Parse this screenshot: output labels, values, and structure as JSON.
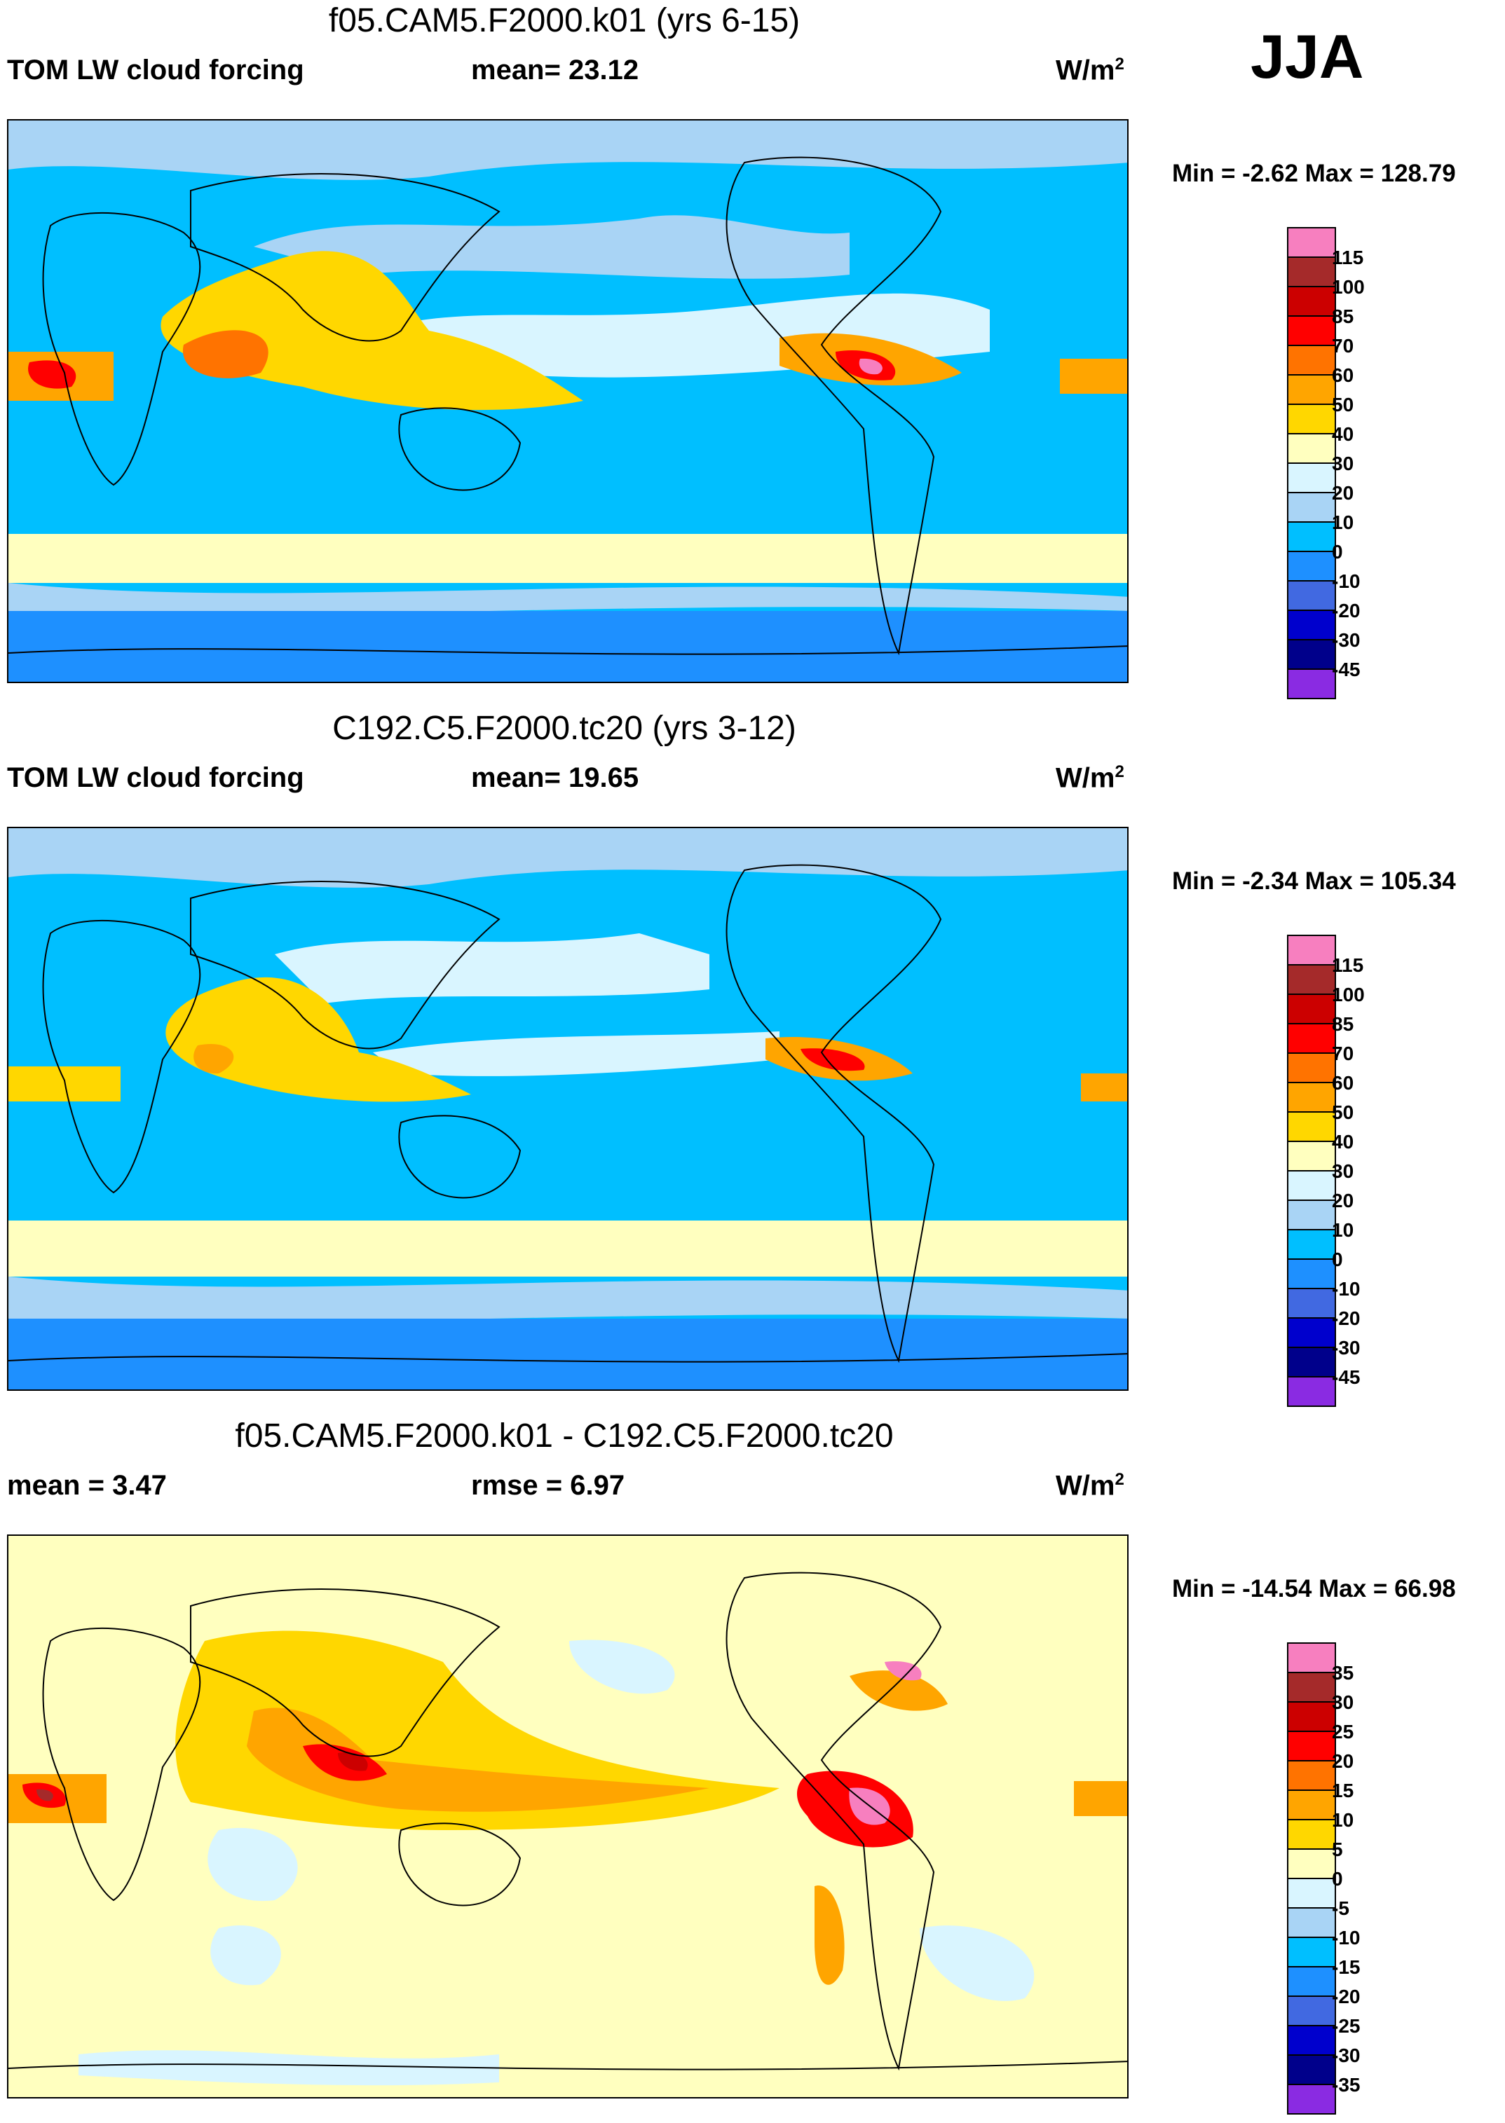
{
  "season": "JJA",
  "units_base": "W/m",
  "units_exp": "2",
  "panels": [
    {
      "title": "f05.CAM5.F2000.k01 (yrs 6-15)",
      "left_text": "TOM LW cloud forcing",
      "mid_text": "mean=  23.12",
      "minmax": "Min =  -2.62 Max = 128.79",
      "colorbar": {
        "labels": [
          "115",
          "100",
          "85",
          "70",
          "60",
          "50",
          "40",
          "30",
          "20",
          "10",
          "0",
          "-10",
          "-20",
          "-30",
          "-45"
        ],
        "colors": [
          "#f77fbf",
          "#a52a2a",
          "#cc0000",
          "#ff0000",
          "#ff7300",
          "#ffa500",
          "#ffd700",
          "#ffffbf",
          "#d9f5ff",
          "#a9d4f5",
          "#00bfff",
          "#1e90ff",
          "#4169e1",
          "#0000cd",
          "#00008b",
          "#8a2be2"
        ]
      }
    },
    {
      "title": "C192.C5.F2000.tc20 (yrs 3-12)",
      "left_text": "TOM LW cloud forcing",
      "mid_text": "mean=  19.65",
      "minmax": "Min =  -2.34 Max = 105.34",
      "colorbar": {
        "labels": [
          "115",
          "100",
          "85",
          "70",
          "60",
          "50",
          "40",
          "30",
          "20",
          "10",
          "0",
          "-10",
          "-20",
          "-30",
          "-45"
        ],
        "colors": [
          "#f77fbf",
          "#a52a2a",
          "#cc0000",
          "#ff0000",
          "#ff7300",
          "#ffa500",
          "#ffd700",
          "#ffffbf",
          "#d9f5ff",
          "#a9d4f5",
          "#00bfff",
          "#1e90ff",
          "#4169e1",
          "#0000cd",
          "#00008b",
          "#8a2be2"
        ]
      }
    },
    {
      "title": "f05.CAM5.F2000.k01 - C192.C5.F2000.tc20",
      "left_text": "mean =   3.47",
      "mid_text": "rmse =   6.97",
      "minmax": "Min = -14.54 Max =  66.98",
      "colorbar": {
        "labels": [
          "35",
          "30",
          "25",
          "20",
          "15",
          "10",
          "5",
          "0",
          "-5",
          "-10",
          "-15",
          "-20",
          "-25",
          "-30",
          "-35"
        ],
        "colors": [
          "#f77fbf",
          "#a52a2a",
          "#cc0000",
          "#ff0000",
          "#ff7300",
          "#ffa500",
          "#ffd700",
          "#ffffbf",
          "#d9f5ff",
          "#a9d4f5",
          "#00bfff",
          "#1e90ff",
          "#4169e1",
          "#0000cd",
          "#00008b",
          "#8a2be2"
        ]
      }
    }
  ]
}
